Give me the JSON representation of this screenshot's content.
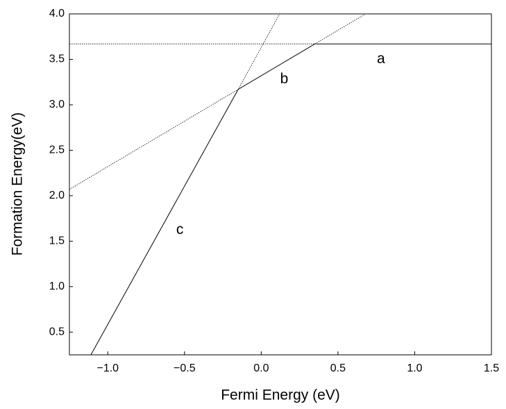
{
  "chart_data": {
    "type": "line",
    "x_label": "Fermi Energy (eV)",
    "y_label": "Formation Energy(eV)",
    "xlim": [
      -1.25,
      1.5
    ],
    "ylim": [
      0.25,
      4.0
    ],
    "xticks": [
      {
        "value": -1.0,
        "label": "−1.0"
      },
      {
        "value": -0.5,
        "label": "−0.5"
      },
      {
        "value": 0.0,
        "label": "0.0"
      },
      0.5,
      {
        "value": 1.0,
        "label": "1.0"
      },
      1.5
    ],
    "yticks": [
      0.5,
      {
        "value": 1.0,
        "label": "1.0"
      },
      1.5,
      {
        "value": 2.0,
        "label": "2.0"
      },
      2.5,
      {
        "value": 3.0,
        "label": "3.0"
      },
      3.5,
      {
        "value": 4.0,
        "label": "4.0"
      }
    ],
    "grid": false,
    "color": "#000000",
    "series": [
      {
        "name": "a",
        "x": [
          -1.25,
          0.35,
          1.5
        ],
        "values": [
          3.67,
          3.67,
          3.67
        ],
        "segment_styles": [
          "dotted",
          "solid"
        ]
      },
      {
        "name": "b",
        "x": [
          -1.25,
          -0.15,
          0.35,
          0.68
        ],
        "values": [
          2.07,
          3.17,
          3.67,
          4.0
        ],
        "segment_styles": [
          "dotted",
          "solid",
          "dotted"
        ]
      },
      {
        "name": "c",
        "x": [
          -1.11,
          -0.15,
          0.12
        ],
        "values": [
          0.25,
          3.17,
          4.0
        ],
        "segment_styles": [
          "solid",
          "dotted"
        ]
      }
    ],
    "annotations": [
      {
        "text": "a",
        "x": 0.78,
        "y": 3.5
      },
      {
        "text": "b",
        "x": 0.15,
        "y": 3.28
      },
      {
        "text": "c",
        "x": -0.53,
        "y": 1.62
      }
    ]
  }
}
